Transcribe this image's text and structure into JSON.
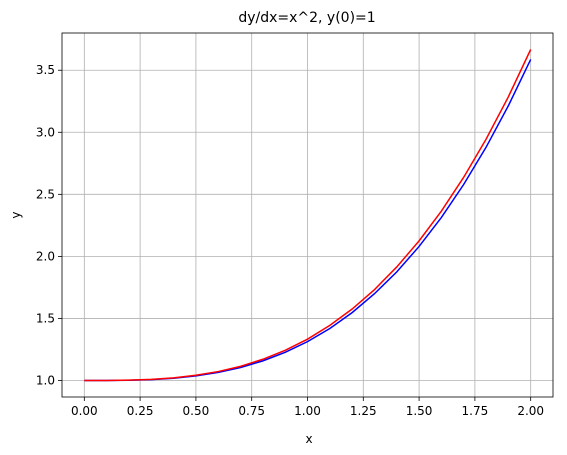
{
  "chart_data": {
    "type": "line",
    "title": "dy/dx=x^2, y(0)=1",
    "x_label": "x",
    "y_label": "y",
    "x": [
      0,
      0.1,
      0.2,
      0.3,
      0.4,
      0.5,
      0.6,
      0.7,
      0.8,
      0.9,
      1.0,
      1.1,
      1.2,
      1.3,
      1.4,
      1.5,
      1.6,
      1.7,
      1.8,
      1.9,
      2.0
    ],
    "series": [
      {
        "color": "#0000ff",
        "values": [
          1.0,
          1.0,
          1.002,
          1.007,
          1.018,
          1.037,
          1.065,
          1.105,
          1.158,
          1.227,
          1.313,
          1.419,
          1.547,
          1.699,
          1.875,
          2.08,
          2.314,
          2.58,
          2.879,
          3.214,
          3.587
        ]
      },
      {
        "color": "#ff0000",
        "values": [
          1.0,
          1.0,
          1.003,
          1.009,
          1.021,
          1.042,
          1.072,
          1.114,
          1.171,
          1.243,
          1.333,
          1.444,
          1.576,
          1.732,
          1.915,
          2.125,
          2.365,
          2.638,
          2.944,
          3.286,
          3.667
        ]
      }
    ],
    "xlim": [
      -0.1,
      2.1
    ],
    "ylim": [
      0.867,
      3.8
    ],
    "xticks": [
      {
        "value": 0,
        "label": "0.00"
      },
      {
        "value": 0.25,
        "label": "0.25"
      },
      {
        "value": 0.5,
        "label": "0.50"
      },
      {
        "value": 0.75,
        "label": "0.75"
      },
      {
        "value": 1,
        "label": "1.00"
      },
      {
        "value": 1.25,
        "label": "1.25"
      },
      {
        "value": 1.5,
        "label": "1.50"
      },
      {
        "value": 1.75,
        "label": "1.75"
      },
      {
        "value": 2,
        "label": "2.00"
      }
    ],
    "yticks": [
      {
        "value": 1,
        "label": "1.0"
      },
      1.5,
      {
        "value": 2,
        "label": "2.0"
      },
      2.5,
      {
        "value": 3,
        "label": "3.0"
      },
      3.5
    ],
    "grid": true
  }
}
